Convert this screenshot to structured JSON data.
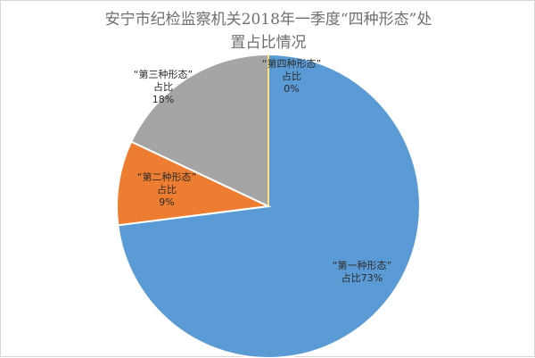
{
  "chart_data": {
    "type": "pie",
    "title_lines": [
      "安宁市纪检监察机关2018年一季度“四种形态”处",
      "置占比情况"
    ],
    "slices": [
      {
        "name": "“第一种形态”",
        "value": 73,
        "label_lines": [
          "“第一种形态”",
          "占比73%"
        ],
        "color": "#5b9bd5"
      },
      {
        "name": "“第二种形态”",
        "value": 9,
        "label_lines": [
          "“第二种形态”",
          "占比",
          "9%"
        ],
        "color": "#ed7d31"
      },
      {
        "name": "“第三种形态”",
        "value": 18,
        "label_lines": [
          "“第三种形态”",
          "占比",
          "18%"
        ],
        "color": "#a5a5a5"
      },
      {
        "name": "“第四种形态”",
        "value": 0,
        "label_lines": [
          "“第四种形态”",
          "占比",
          "0%"
        ],
        "color": "#ffc000"
      }
    ]
  }
}
